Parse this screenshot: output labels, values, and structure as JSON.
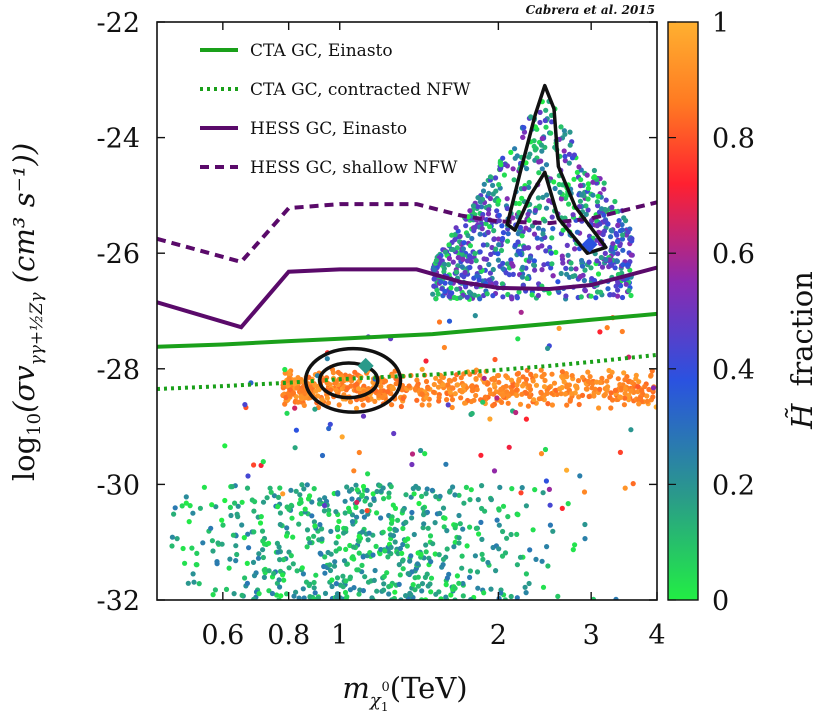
{
  "chart_data": {
    "type": "scatter",
    "credit": "Cabrera et al. 2015",
    "xlabel_main": "m",
    "xlabel_sub": "χ",
    "xlabel_subsub": "1",
    "xlabel_sup": "0",
    "xlabel_unit": "(TeV)",
    "ylabel": "log10(σv γγ+½Zγ (cm³ s⁻¹))",
    "ylabel_prefix": "log",
    "ylabel_prefix_sub": "10",
    "ylabel_sigma": "(σv",
    "ylabel_sub": "γγ+½Zγ",
    "ylabel_units": " (cm³ s⁻¹))",
    "colorbar_label": "H̃ fraction",
    "colorbar_symbol": "H̃",
    "colorbar_word": "fraction",
    "xscale": "log",
    "xlim": [
      0.45,
      4.0
    ],
    "ylim": [
      -32,
      -22
    ],
    "x_ticks": [
      {
        "value": 0.6,
        "label": "0.6"
      },
      {
        "value": 0.8,
        "label": "0.8"
      },
      {
        "value": 1,
        "label": "1"
      },
      {
        "value": 2,
        "label": "2"
      },
      {
        "value": 3,
        "label": "3"
      },
      {
        "value": 4,
        "label": "4"
      }
    ],
    "y_ticks": [
      {
        "value": -32,
        "label": "-32"
      },
      {
        "value": -30,
        "label": "-30"
      },
      {
        "value": -28,
        "label": "-28"
      },
      {
        "value": -26,
        "label": "-26"
      },
      {
        "value": -24,
        "label": "-24"
      },
      {
        "value": -22,
        "label": "-22"
      }
    ],
    "colorbar_ticks": [
      {
        "value": 0,
        "label": "0"
      },
      {
        "value": 0.2,
        "label": "0.2"
      },
      {
        "value": 0.4,
        "label": "0.4"
      },
      {
        "value": 0.6,
        "label": "0.6"
      },
      {
        "value": 0.8,
        "label": "0.8"
      },
      {
        "value": 1,
        "label": "1"
      }
    ],
    "colormap": [
      "#22ee44",
      "#2a9a8a",
      "#2a52e0",
      "#8a2ab0",
      "#ff2030",
      "#ff7a22",
      "#ffb030"
    ],
    "series": [
      {
        "name": "CTA GC, Einasto",
        "color": "#1aa01a",
        "style": "solid",
        "x": [
          0.45,
          0.6,
          0.8,
          1.0,
          1.5,
          2.0,
          2.5,
          3.0,
          4.0
        ],
        "y": [
          -27.62,
          -27.58,
          -27.52,
          -27.48,
          -27.4,
          -27.3,
          -27.22,
          -27.15,
          -27.05
        ]
      },
      {
        "name": "CTA GC, contracted NFW",
        "color": "#1aa01a",
        "style": "dotted",
        "x": [
          0.45,
          0.6,
          0.8,
          1.0,
          1.5,
          2.0,
          2.5,
          3.0,
          4.0
        ],
        "y": [
          -28.35,
          -28.3,
          -28.24,
          -28.18,
          -28.1,
          -28.02,
          -27.95,
          -27.88,
          -27.76
        ]
      },
      {
        "name": "HESS GC, Einasto",
        "color": "#5a0a6a",
        "style": "solid",
        "x": [
          0.45,
          0.65,
          0.8,
          1.0,
          1.4,
          1.7,
          2.0,
          2.5,
          3.0,
          4.0
        ],
        "y": [
          -26.85,
          -27.28,
          -26.32,
          -26.28,
          -26.28,
          -26.5,
          -26.6,
          -26.62,
          -26.55,
          -26.25
        ]
      },
      {
        "name": "HESS GC, shallow NFW",
        "color": "#5a0a6a",
        "style": "dashed",
        "x": [
          0.45,
          0.65,
          0.8,
          1.0,
          1.4,
          1.7,
          2.0,
          2.5,
          3.0,
          4.0
        ],
        "y": [
          -25.75,
          -26.15,
          -25.22,
          -25.15,
          -25.15,
          -25.35,
          -25.45,
          -25.48,
          -25.4,
          -25.12
        ]
      }
    ],
    "contours": [
      {
        "name": "contour-inner-low",
        "cx": 1.04,
        "cy": -28.2,
        "rx_dex": 0.055,
        "ry": 0.3
      },
      {
        "name": "contour-outer-low",
        "cx": 1.06,
        "cy": -28.2,
        "rx_dex": 0.09,
        "ry": 0.55
      },
      {
        "name": "contour-high",
        "points": [
          [
            2.08,
            -25.5
          ],
          [
            2.2,
            -24.6
          ],
          [
            2.35,
            -23.6
          ],
          [
            2.45,
            -23.1
          ],
          [
            2.55,
            -23.5
          ],
          [
            2.6,
            -24.5
          ],
          [
            2.8,
            -25.2
          ],
          [
            3.2,
            -25.9
          ],
          [
            2.95,
            -26.0
          ],
          [
            2.6,
            -25.4
          ],
          [
            2.45,
            -24.6
          ],
          [
            2.3,
            -25.0
          ],
          [
            2.15,
            -25.6
          ]
        ]
      }
    ],
    "markers": [
      {
        "name": "diamond-low",
        "x": 1.12,
        "y": -27.95,
        "color": "#2a9a8a"
      },
      {
        "name": "diamond-high",
        "x": 2.98,
        "y": -25.85,
        "color": "#2a52e0"
      }
    ],
    "scatter_clusters": [
      {
        "name": "green-bottom",
        "x_range": [
          0.48,
          3.9
        ],
        "y_range": [
          -32,
          -30
        ],
        "frac_range": [
          0.0,
          0.25
        ],
        "count": 650
      },
      {
        "name": "orange-band",
        "x_range": [
          0.78,
          3.95
        ],
        "y_range": [
          -28.9,
          -28.0
        ],
        "frac_range": [
          0.8,
          0.95
        ],
        "count": 650
      },
      {
        "name": "upper-cluster",
        "x_range": [
          1.5,
          3.6
        ],
        "y_range": [
          -26.9,
          -23.2
        ],
        "frac_range": [
          0.0,
          0.5
        ],
        "count": 850
      },
      {
        "name": "sparse-middle",
        "x_range": [
          0.6,
          4.0
        ],
        "y_range": [
          -30.5,
          -27.0
        ],
        "frac_range": [
          0.0,
          1.0
        ],
        "count": 90
      }
    ]
  }
}
